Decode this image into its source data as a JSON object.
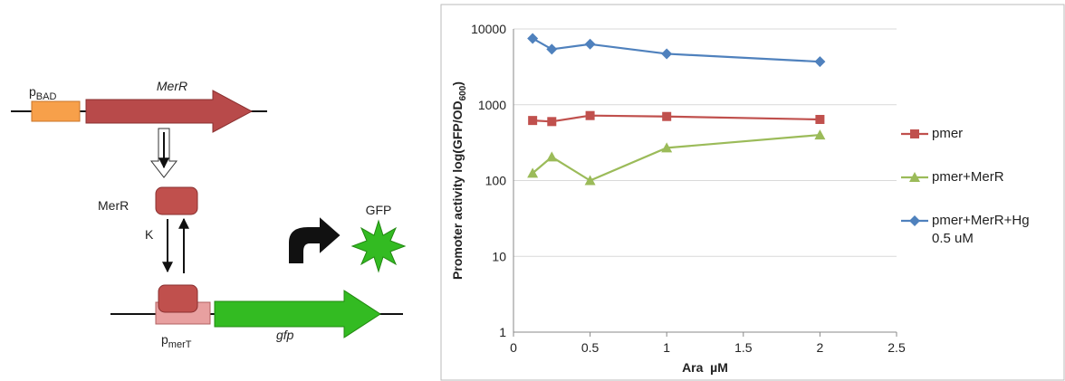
{
  "diagram": {
    "p_bad": [
      "p",
      "BAD"
    ],
    "gene_merr": "MerR",
    "protein_merr": "MerR",
    "k": "K",
    "gfp_protein": "GFP",
    "p_mert": [
      "p",
      "merT"
    ],
    "gene_gfp": "gfp"
  },
  "chart_data": {
    "type": "line",
    "x": [
      0.125,
      0.25,
      0.5,
      1,
      2
    ],
    "series": [
      {
        "name": "pmer",
        "color": "#c0504d",
        "marker": "square",
        "values": [
          620,
          600,
          720,
          700,
          640
        ]
      },
      {
        "name": "pmer+MerR",
        "color": "#9bbb59",
        "marker": "triangle",
        "values": [
          125,
          205,
          100,
          270,
          400
        ]
      },
      {
        "name": "pmer+MerR+Hg 0.5 uM",
        "color": "#4f81bd",
        "marker": "diamond",
        "values": [
          7500,
          5400,
          6300,
          4700,
          3700
        ]
      }
    ],
    "xlabel": "Ara  µM",
    "ylabel": [
      "Promoter activity log(GFP/OD",
      "600",
      ")"
    ],
    "xlim": [
      0,
      2.5
    ],
    "xticks": [
      0,
      0.5,
      1,
      1.5,
      2,
      2.5
    ],
    "ylim": [
      1,
      10000
    ],
    "yticks": [
      1,
      10,
      100,
      1000,
      10000
    ],
    "ylog": true,
    "grid": true,
    "legend": "right"
  }
}
